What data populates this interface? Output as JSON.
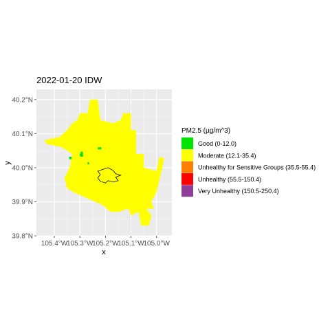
{
  "chart_data": {
    "type": "heatmap",
    "title": "2022-01-20 IDW",
    "xlabel": "x",
    "ylabel": "y",
    "xlim": [
      -105.47,
      -104.94
    ],
    "ylim": [
      39.8,
      40.23
    ],
    "x_ticks": [
      {
        "value": -105.4,
        "label": "105.4°W"
      },
      {
        "value": -105.3,
        "label": "105.3°W"
      },
      {
        "value": -105.2,
        "label": "105.2°W"
      },
      {
        "value": -105.1,
        "label": "105.1°W"
      },
      {
        "value": -105.0,
        "label": "105.0°W"
      }
    ],
    "y_ticks": [
      {
        "value": 39.8,
        "label": "39.8°N"
      },
      {
        "value": 39.9,
        "label": "39.9°N"
      },
      {
        "value": 40.0,
        "label": "40.0°N"
      },
      {
        "value": 40.1,
        "label": "40.1°N"
      },
      {
        "value": 40.2,
        "label": "40.2°N"
      }
    ],
    "grid": true,
    "legend": {
      "title": "PM2.5 (µg/m^3)",
      "placement": "right",
      "entries": [
        {
          "label": "Good (0-12.0)",
          "color": "#00e400"
        },
        {
          "label": "Moderate (12.1-35.4)",
          "color": "#ffff00"
        },
        {
          "label": "Unhealthy for Sensitive Groups (35.5-55.4)",
          "color": "#ff7e00"
        },
        {
          "label": "Unhealthy (55.5-150.4)",
          "color": "#ff0000"
        },
        {
          "label": "Very Unhealthy (150.5-250.4)",
          "color": "#8f3f97"
        }
      ]
    },
    "region_outline": [
      [
        -105.3,
        40.16
      ],
      [
        -105.27,
        40.16
      ],
      [
        -105.26,
        40.2
      ],
      [
        -105.23,
        40.2
      ],
      [
        -105.22,
        40.14
      ],
      [
        -105.17,
        40.13
      ],
      [
        -105.14,
        40.14
      ],
      [
        -105.13,
        40.16
      ],
      [
        -105.1,
        40.16
      ],
      [
        -105.1,
        40.11
      ],
      [
        -105.08,
        40.11
      ],
      [
        -105.08,
        40.04
      ],
      [
        -105.05,
        40.04
      ],
      [
        -105.05,
        40.0
      ],
      [
        -105.0,
        39.99
      ],
      [
        -104.99,
        40.03
      ],
      [
        -104.97,
        40.03
      ],
      [
        -104.98,
        39.99
      ],
      [
        -105.0,
        39.93
      ],
      [
        -105.02,
        39.9
      ],
      [
        -105.01,
        39.88
      ],
      [
        -105.04,
        39.88
      ],
      [
        -105.02,
        39.86
      ],
      [
        -105.03,
        39.83
      ],
      [
        -105.06,
        39.83
      ],
      [
        -105.07,
        39.87
      ],
      [
        -105.1,
        39.86
      ],
      [
        -105.11,
        39.88
      ],
      [
        -105.15,
        39.87
      ],
      [
        -105.18,
        39.87
      ],
      [
        -105.21,
        39.89
      ],
      [
        -105.24,
        39.9
      ],
      [
        -105.27,
        39.91
      ],
      [
        -105.3,
        39.92
      ],
      [
        -105.33,
        39.93
      ],
      [
        -105.35,
        39.94
      ],
      [
        -105.36,
        39.97
      ],
      [
        -105.34,
        40.0
      ],
      [
        -105.33,
        40.04
      ],
      [
        -105.37,
        40.06
      ],
      [
        -105.43,
        40.07
      ],
      [
        -105.44,
        40.08
      ],
      [
        -105.38,
        40.09
      ],
      [
        -105.35,
        40.11
      ],
      [
        -105.33,
        40.13
      ],
      [
        -105.31,
        40.14
      ]
    ],
    "region_value_category": "Moderate (12.1-35.4)",
    "good_cells": [
      [
        -105.342,
        40.025,
        -105.332,
        40.032
      ],
      [
        -105.297,
        40.032,
        -105.288,
        40.047
      ],
      [
        -105.3,
        40.034,
        -105.291,
        40.041
      ],
      [
        -105.23,
        40.054,
        -105.216,
        40.06
      ],
      [
        -105.27,
        40.01,
        -105.264,
        40.016
      ]
    ],
    "city_boundary": [
      [
        -105.21,
        39.995
      ],
      [
        -105.19,
        40.0
      ],
      [
        -105.17,
        39.992
      ],
      [
        -105.16,
        39.982
      ],
      [
        -105.14,
        39.978
      ],
      [
        -105.16,
        39.972
      ],
      [
        -105.15,
        39.962
      ],
      [
        -105.17,
        39.958
      ],
      [
        -105.19,
        39.962
      ],
      [
        -105.2,
        39.955
      ],
      [
        -105.22,
        39.96
      ],
      [
        -105.23,
        39.97
      ],
      [
        -105.22,
        39.98
      ],
      [
        -105.23,
        39.99
      ]
    ]
  }
}
